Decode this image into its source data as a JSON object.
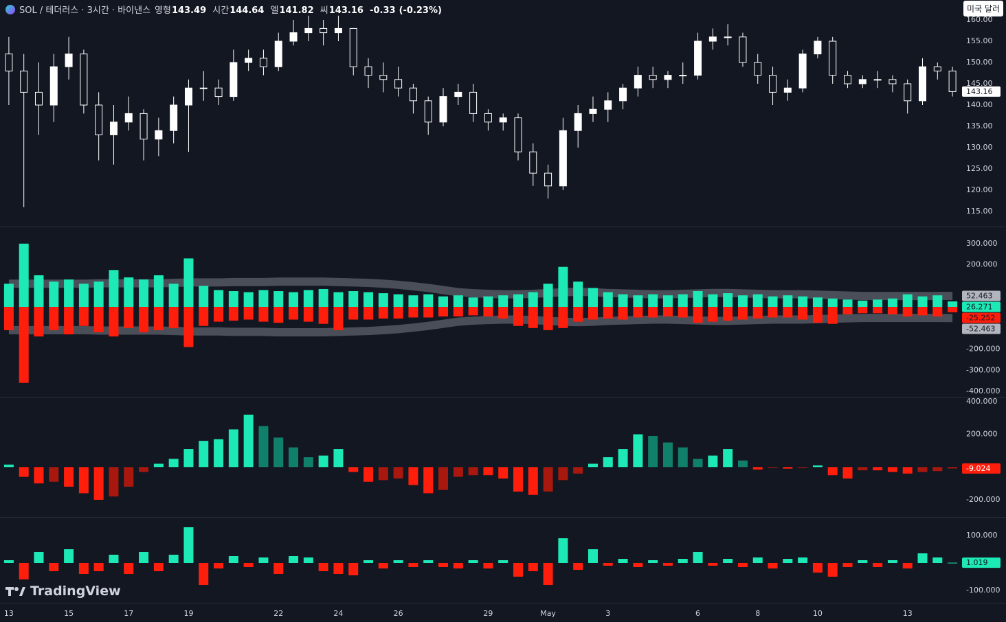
{
  "ui": {
    "currency_button": "미국 달러",
    "logo": "TradingView"
  },
  "chart_data": [
    {
      "type": "candlestick",
      "title": "SOL / 테더러스 · 3시간 · 바이낸스",
      "ohlc_legend": [
        {
          "label": "영형",
          "value": 143.49
        },
        {
          "label": "시간",
          "value": 144.64
        },
        {
          "label": "엘",
          "value": 141.82
        },
        {
          "label": "씨",
          "value": 143.16
        }
      ],
      "change": -0.33,
      "change_pct": "(-0.23%)",
      "categories": [
        "13",
        null,
        null,
        null,
        "15",
        null,
        null,
        null,
        "17",
        null,
        null,
        null,
        "19",
        null,
        null,
        null,
        null,
        null,
        "22",
        null,
        null,
        null,
        "24",
        null,
        null,
        null,
        "26",
        null,
        null,
        null,
        null,
        null,
        "29",
        null,
        null,
        null,
        "May",
        null,
        null,
        null,
        "3",
        null,
        null,
        null,
        null,
        null,
        "6",
        null,
        null,
        null,
        "8",
        null,
        null,
        null,
        "10",
        null,
        null,
        null,
        null,
        null,
        "13",
        null,
        null,
        null
      ],
      "open": [
        152,
        148,
        143,
        140,
        149,
        152,
        140,
        133,
        136,
        138,
        132,
        134,
        140,
        144,
        144,
        142,
        150,
        151,
        149,
        155,
        157,
        158,
        157,
        158,
        149,
        147,
        146,
        144,
        141,
        136,
        142,
        143,
        138,
        136,
        137,
        129,
        124,
        121,
        134,
        138,
        139,
        141,
        144,
        147,
        146,
        147,
        147,
        155,
        156,
        156,
        150,
        147,
        143,
        144,
        152,
        155,
        147,
        145,
        146,
        146,
        145,
        141,
        149,
        148
      ],
      "high": [
        156,
        152,
        150,
        152,
        156,
        153,
        143,
        140,
        142,
        139,
        137,
        142,
        146,
        148,
        146,
        153,
        153,
        153,
        157,
        160,
        161,
        160,
        161,
        158,
        151,
        150,
        149,
        145,
        142,
        144,
        145,
        145,
        139,
        138,
        138,
        131,
        126,
        137,
        140,
        142,
        143,
        145,
        149,
        149,
        148,
        150,
        157,
        158,
        159,
        157,
        152,
        149,
        146,
        153,
        156,
        156,
        148,
        147,
        148,
        147,
        146,
        151,
        150,
        149
      ],
      "low": [
        140,
        116,
        133,
        136,
        146,
        138,
        127,
        126,
        134,
        127,
        128,
        131,
        129,
        141,
        140,
        141,
        148,
        147,
        148,
        154,
        155,
        154,
        155,
        147,
        144,
        143,
        142,
        138,
        133,
        135,
        140,
        136,
        134,
        134,
        127,
        121,
        118,
        120,
        130,
        136,
        136,
        139,
        142,
        144,
        144,
        145,
        146,
        153,
        154,
        149,
        145,
        140,
        141,
        143,
        151,
        145,
        144,
        144,
        144,
        143,
        138,
        140,
        146,
        142
      ],
      "close": [
        148,
        143,
        140,
        149,
        152,
        140,
        133,
        136,
        138,
        132,
        134,
        140,
        144,
        144,
        142,
        150,
        151,
        149,
        155,
        157,
        158,
        157,
        158,
        149,
        147,
        146,
        144,
        141,
        136,
        142,
        143,
        138,
        136,
        137,
        129,
        124,
        121,
        134,
        138,
        139,
        141,
        144,
        147,
        146,
        147,
        147,
        155,
        156,
        156,
        150,
        147,
        143,
        144,
        152,
        155,
        147,
        145,
        146,
        146,
        145,
        141,
        149,
        148,
        143.16
      ],
      "color": "#ffffff",
      "down_fill": "#131722",
      "ylim": [
        111.45,
        164.68
      ],
      "yticks": [
        {
          "value": 115,
          "label": "115.00"
        },
        {
          "value": 120,
          "label": "120.00"
        },
        {
          "value": 125,
          "label": "125.00"
        },
        {
          "value": 130,
          "label": "130.00"
        },
        {
          "value": 135,
          "label": "135.00"
        },
        {
          "value": 140,
          "label": "140.00"
        },
        {
          "value": 145,
          "label": "145.00"
        },
        {
          "value": 150,
          "label": "150.00"
        },
        {
          "value": 155,
          "label": "155.00"
        },
        {
          "value": 160,
          "label": "160.00"
        }
      ],
      "grid": false
    },
    {
      "type": "bar",
      "series": [
        {
          "color": "#1de9b6",
          "values": [
            110,
            300,
            150,
            120,
            130,
            110,
            120,
            175,
            140,
            130,
            150,
            110,
            230,
            100,
            80,
            75,
            70,
            80,
            75,
            70,
            80,
            85,
            70,
            75,
            70,
            65,
            60,
            55,
            60,
            50,
            55,
            45,
            50,
            55,
            60,
            70,
            110,
            190,
            120,
            90,
            70,
            60,
            55,
            60,
            55,
            60,
            75,
            60,
            65,
            55,
            60,
            50,
            55,
            50,
            45,
            40,
            35,
            30,
            35,
            40,
            60,
            50,
            55,
            26.271
          ]
        },
        {
          "color": "#ff1e0c",
          "values": [
            -110,
            -360,
            -140,
            -110,
            -130,
            -90,
            -120,
            -140,
            -100,
            -120,
            -110,
            -100,
            -190,
            -90,
            -70,
            -65,
            -60,
            -70,
            -75,
            -60,
            -70,
            -80,
            -110,
            -60,
            -60,
            -55,
            -55,
            -50,
            -50,
            -45,
            -45,
            -40,
            -45,
            -55,
            -90,
            -100,
            -110,
            -100,
            -70,
            -60,
            -55,
            -60,
            -50,
            -50,
            -45,
            -50,
            -75,
            -70,
            -65,
            -60,
            -55,
            -50,
            -50,
            -60,
            -75,
            -80,
            -35,
            -30,
            -30,
            -35,
            -45,
            -40,
            -45,
            -25.252
          ]
        }
      ],
      "bands": {
        "color": "#b2b5be",
        "upper": [
          110,
          110,
          110,
          110,
          110,
          110,
          112,
          112,
          112,
          112,
          112,
          114,
          116,
          116,
          116,
          118,
          118,
          118,
          120,
          120,
          120,
          120,
          118,
          116,
          114,
          110,
          105,
          98,
          90,
          80,
          70,
          65,
          62,
          60,
          60,
          62,
          66,
          70,
          72,
          70,
          66,
          64,
          62,
          60,
          60,
          62,
          64,
          66,
          66,
          64,
          62,
          60,
          60,
          60,
          58,
          56,
          54,
          52,
          52,
          52,
          52,
          52,
          52,
          52.463
        ],
        "lower": [
          -110,
          -110,
          -110,
          -110,
          -110,
          -110,
          -112,
          -112,
          -112,
          -112,
          -112,
          -114,
          -116,
          -116,
          -116,
          -118,
          -118,
          -118,
          -120,
          -120,
          -120,
          -120,
          -118,
          -116,
          -114,
          -110,
          -105,
          -98,
          -90,
          -80,
          -70,
          -65,
          -62,
          -60,
          -60,
          -62,
          -66,
          -70,
          -72,
          -70,
          -66,
          -64,
          -62,
          -60,
          -60,
          -62,
          -64,
          -66,
          -66,
          -64,
          -62,
          -60,
          -60,
          -60,
          -58,
          -56,
          -54,
          -52,
          -52,
          -52,
          -52,
          -52,
          -52,
          -52.463
        ]
      },
      "ylim": [
        -426,
        381
      ],
      "yticks": [
        {
          "value": 300,
          "label": "300.000"
        },
        {
          "value": 200,
          "label": "200.000"
        },
        {
          "value": -200,
          "label": "-200.000"
        },
        {
          "value": -300,
          "label": "-300.000"
        },
        {
          "value": -400,
          "label": "-400.000"
        }
      ],
      "grid": false
    },
    {
      "type": "bar",
      "values": [
        15,
        -60,
        -100,
        -90,
        -120,
        -160,
        -200,
        -180,
        -120,
        -30,
        20,
        50,
        110,
        160,
        170,
        230,
        320,
        250,
        180,
        120,
        60,
        70,
        110,
        -30,
        -90,
        -80,
        -70,
        -110,
        -160,
        -140,
        -60,
        -50,
        -50,
        -70,
        -150,
        -170,
        -150,
        -80,
        -40,
        20,
        60,
        110,
        200,
        190,
        150,
        120,
        50,
        70,
        110,
        40,
        -15,
        -5,
        -10,
        -5,
        10,
        -50,
        -70,
        -20,
        -20,
        -30,
        -40,
        -30,
        -25,
        -9.024
      ],
      "colors": {
        "positive": [
          "#1de9b6",
          "#11806a"
        ],
        "negative": [
          "#ff1e0c",
          "#a8180e"
        ]
      },
      "ylim": [
        -305,
        429
      ],
      "yticks": [
        {
          "value": 400,
          "label": "400.000"
        },
        {
          "value": 200,
          "label": "200.000"
        },
        {
          "value": -200,
          "label": "-200.000"
        }
      ],
      "grid": false
    },
    {
      "type": "bar",
      "values": [
        10,
        -60,
        40,
        -30,
        50,
        -40,
        -30,
        30,
        -40,
        40,
        -30,
        30,
        130,
        -80,
        -20,
        25,
        -15,
        20,
        -40,
        25,
        20,
        -30,
        -40,
        -45,
        10,
        -20,
        10,
        -15,
        10,
        -15,
        -20,
        10,
        -20,
        10,
        -50,
        -30,
        -80,
        90,
        -25,
        50,
        -10,
        15,
        -15,
        10,
        -10,
        15,
        40,
        -10,
        15,
        -15,
        20,
        -20,
        15,
        20,
        -35,
        -50,
        -15,
        10,
        -15,
        10,
        -20,
        35,
        20,
        1.019
      ],
      "colors": {
        "positive": [
          "#1de9b6"
        ],
        "negative": [
          "#ff1e0c"
        ]
      },
      "ylim": [
        -145,
        167.5
      ],
      "yticks": [
        {
          "value": 100,
          "label": "100.000"
        },
        {
          "value": -100,
          "label": "-100.000"
        }
      ],
      "grid": false
    }
  ]
}
